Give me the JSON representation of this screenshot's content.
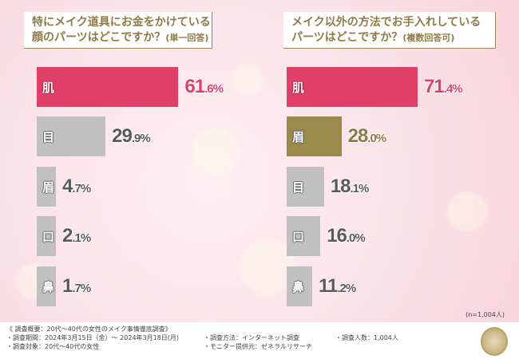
{
  "left": {
    "title_line1": "特にメイク道具にお金をかけている",
    "title_line2": "顔のパーツはどこですか？",
    "title_note": "(単一回答)",
    "items": [
      {
        "label": "肌",
        "int": "61",
        "dec": ".6%",
        "value": 61.6,
        "style": "hi"
      },
      {
        "label": "目",
        "int": "29",
        "dec": ".9%",
        "value": 29.9,
        "style": "gray"
      },
      {
        "label": "眉",
        "int": "4",
        "dec": ".7%",
        "value": 4.7,
        "style": "gray"
      },
      {
        "label": "口",
        "int": "2",
        "dec": ".1%",
        "value": 2.1,
        "style": "gray"
      },
      {
        "label": "鼻",
        "int": "1",
        "dec": ".7%",
        "value": 1.7,
        "style": "gray"
      }
    ]
  },
  "right": {
    "title_line1": "メイク以外の方法でお手入れしている",
    "title_line2": "パーツはどこですか？",
    "title_note": "(複数回答可)",
    "items": [
      {
        "label": "肌",
        "int": "71",
        "dec": ".4%",
        "value": 71.4,
        "style": "hi"
      },
      {
        "label": "眉",
        "int": "28",
        "dec": ".0%",
        "value": 28.0,
        "style": "olive"
      },
      {
        "label": "目",
        "int": "18",
        "dec": ".1%",
        "value": 18.1,
        "style": "gray"
      },
      {
        "label": "口",
        "int": "16",
        "dec": ".0%",
        "value": 16.0,
        "style": "gray"
      },
      {
        "label": "鼻",
        "int": "11",
        "dec": ".2%",
        "value": 11.2,
        "style": "gray"
      }
    ]
  },
  "sample_note": "(n=1,004人)",
  "footer": {
    "overview": "《 調査概要：20代～40代の女性のメイク事情徹底調査》",
    "period": "・調査期間：2024年3月15日（金）～ 2024年3月18日(月)",
    "target": "・調査対象：20代～40代の女性",
    "method": "・調査方法：インターネット調査",
    "provider": "・モニター提供元：ゼネラルリサーチ",
    "count": "・調査人数：1,004人"
  },
  "colors": {
    "highlight": "#e03f68",
    "gray": "#c0c0c0",
    "olive": "#9c8a4a",
    "gold": "#9a8550"
  }
}
